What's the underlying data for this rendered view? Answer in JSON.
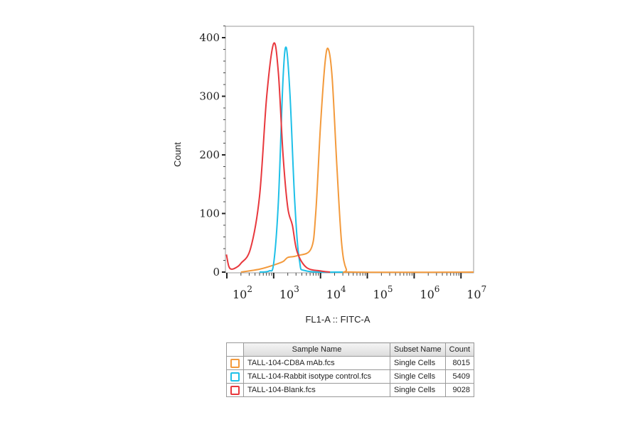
{
  "chart_data": {
    "type": "line",
    "xlabel": "FL1-A :: FITC-A",
    "ylabel": "Count",
    "xscale": "log",
    "xlim": [
      100,
      18600000
    ],
    "ylim": [
      0,
      420
    ],
    "x_ticks": [
      {
        "base": "10",
        "exp": "2",
        "value": 100
      },
      {
        "base": "10",
        "exp": "3",
        "value": 1000
      },
      {
        "base": "10",
        "exp": "4",
        "value": 10000
      },
      {
        "base": "10",
        "exp": "5",
        "value": 100000
      },
      {
        "base": "10",
        "exp": "6",
        "value": 1000000
      },
      {
        "base": "10",
        "exp": "7",
        "value": 10000000
      }
    ],
    "y_ticks": [
      "0",
      "100",
      "200",
      "300",
      "400"
    ],
    "y_tick_values": [
      0,
      100,
      200,
      300,
      400
    ],
    "series": [
      {
        "name": "TALL-104-CD8A mAb.fcs",
        "color": "#f39a3c",
        "points": [
          [
            200,
            0
          ],
          [
            500,
            5
          ],
          [
            1000,
            12
          ],
          [
            1585,
            18
          ],
          [
            2000,
            25
          ],
          [
            3160,
            28
          ],
          [
            6300,
            40
          ],
          [
            7900,
            100
          ],
          [
            10000,
            250
          ],
          [
            12600,
            360
          ],
          [
            14800,
            380
          ],
          [
            17800,
            330
          ],
          [
            22400,
            180
          ],
          [
            28200,
            50
          ],
          [
            35500,
            5
          ],
          [
            50000,
            0
          ],
          [
            18600000,
            0
          ]
        ]
      },
      {
        "name": "TALL-104-Rabbit isotype control.fcs",
        "color": "#1ec0e8",
        "points": [
          [
            500,
            0
          ],
          [
            800,
            2
          ],
          [
            1000,
            15
          ],
          [
            1260,
            120
          ],
          [
            1585,
            330
          ],
          [
            1860,
            383
          ],
          [
            2240,
            300
          ],
          [
            2820,
            120
          ],
          [
            3550,
            20
          ],
          [
            5000,
            2
          ],
          [
            30000,
            0
          ]
        ]
      },
      {
        "name": "TALL-104-Blank.fcs",
        "color": "#e8383d",
        "points": [
          [
            98,
            30
          ],
          [
            110,
            10
          ],
          [
            126,
            5
          ],
          [
            160,
            8
          ],
          [
            200,
            15
          ],
          [
            320,
            40
          ],
          [
            500,
            130
          ],
          [
            710,
            300
          ],
          [
            1000,
            390
          ],
          [
            1260,
            340
          ],
          [
            1585,
            200
          ],
          [
            2000,
            110
          ],
          [
            2510,
            80
          ],
          [
            3160,
            35
          ],
          [
            5000,
            8
          ],
          [
            10000,
            2
          ],
          [
            16000,
            0
          ]
        ]
      }
    ]
  },
  "table": {
    "headers": [
      "Sample Name",
      "Subset Name",
      "Count"
    ],
    "rows": [
      {
        "sample": "TALL-104-CD8A mAb.fcs",
        "subset": "Single Cells",
        "count": "8015",
        "color": "#f39a3c"
      },
      {
        "sample": "TALL-104-Rabbit isotype control.fcs",
        "subset": "Single Cells",
        "count": "5409",
        "color": "#1ec0e8"
      },
      {
        "sample": "TALL-104-Blank.fcs",
        "subset": "Single Cells",
        "count": "9028",
        "color": "#e8383d"
      }
    ]
  }
}
